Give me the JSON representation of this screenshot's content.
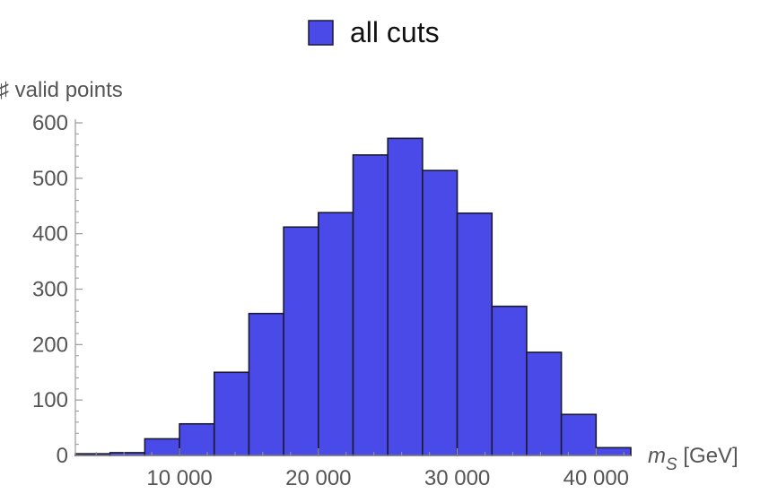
{
  "chart_data": {
    "type": "bar",
    "bins": [
      {
        "x0": 2500,
        "x1": 5000,
        "value": 3
      },
      {
        "x0": 5000,
        "x1": 7500,
        "value": 5
      },
      {
        "x0": 7500,
        "x1": 10000,
        "value": 30
      },
      {
        "x0": 10000,
        "x1": 12500,
        "value": 57
      },
      {
        "x0": 12500,
        "x1": 15000,
        "value": 150
      },
      {
        "x0": 15000,
        "x1": 17500,
        "value": 256
      },
      {
        "x0": 17500,
        "x1": 20000,
        "value": 412
      },
      {
        "x0": 20000,
        "x1": 22500,
        "value": 438
      },
      {
        "x0": 22500,
        "x1": 25000,
        "value": 542
      },
      {
        "x0": 25000,
        "x1": 27500,
        "value": 572
      },
      {
        "x0": 27500,
        "x1": 30000,
        "value": 514
      },
      {
        "x0": 30000,
        "x1": 32500,
        "value": 437
      },
      {
        "x0": 32500,
        "x1": 35000,
        "value": 269
      },
      {
        "x0": 35000,
        "x1": 37500,
        "value": 186
      },
      {
        "x0": 37500,
        "x1": 40000,
        "value": 74
      },
      {
        "x0": 40000,
        "x1": 42500,
        "value": 14
      }
    ],
    "series": [
      {
        "name": "all cuts",
        "color": "#4a4ae8"
      }
    ],
    "xlabel_italic": "m",
    "xlabel_sub": "S",
    "xlabel_unit": " [GeV]",
    "ylabel": "♯ valid points",
    "xlim": [
      2500,
      42500
    ],
    "ylim": [
      0,
      600
    ],
    "x_ticks": [
      {
        "value": 10000,
        "label": "10 000"
      },
      {
        "value": 20000,
        "label": "20 000"
      },
      {
        "value": 30000,
        "label": "30 000"
      },
      {
        "value": 40000,
        "label": "40 000"
      }
    ],
    "y_ticks": [
      {
        "value": 0,
        "label": "0"
      },
      {
        "value": 100,
        "label": "100"
      },
      {
        "value": 200,
        "label": "200"
      },
      {
        "value": 300,
        "label": "300"
      },
      {
        "value": 400,
        "label": "400"
      },
      {
        "value": 500,
        "label": "500"
      },
      {
        "value": 600,
        "label": "600"
      }
    ],
    "legend_position": "top-center",
    "grid": false,
    "bar_color": "#4a4ae8",
    "bar_edge_color": "#1a1a33",
    "axis_color": "#999999"
  }
}
